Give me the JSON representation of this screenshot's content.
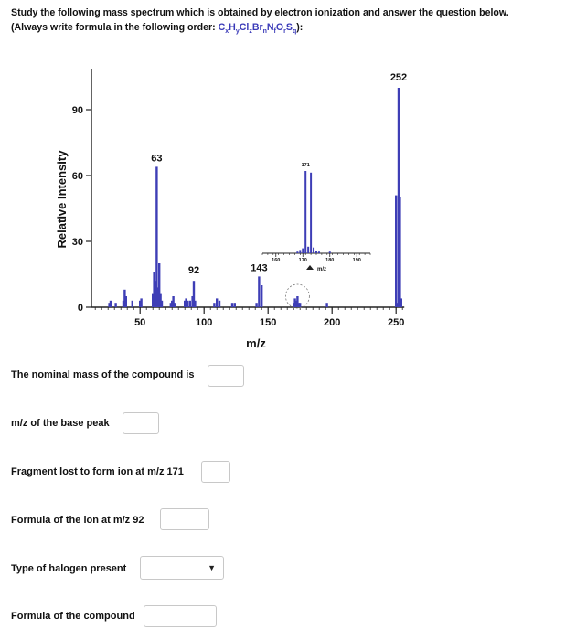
{
  "instructions": {
    "line1": "Study the following mass spectrum which is obtained by electron ionization and answer the question below.",
    "line2_prefix": "(Always write formula in the following order: ",
    "formula_order": "CxHyClzBrnNfOrSq",
    "line2_suffix": "):"
  },
  "chart_data": {
    "type": "bar",
    "ylabel": "Relative Intensity",
    "xlabel": "m/z",
    "xlim": [
      12,
      255
    ],
    "ylim": [
      0,
      100
    ],
    "x_ticks": [
      50,
      100,
      150,
      200,
      250
    ],
    "y_ticks": [
      0,
      30,
      60,
      90
    ],
    "peaks": [
      {
        "mz": 26,
        "intensity": 2
      },
      {
        "mz": 27,
        "intensity": 3
      },
      {
        "mz": 31,
        "intensity": 2
      },
      {
        "mz": 37,
        "intensity": 3
      },
      {
        "mz": 38,
        "intensity": 8
      },
      {
        "mz": 39,
        "intensity": 5
      },
      {
        "mz": 44,
        "intensity": 3
      },
      {
        "mz": 50,
        "intensity": 3
      },
      {
        "mz": 51,
        "intensity": 4
      },
      {
        "mz": 60,
        "intensity": 6
      },
      {
        "mz": 61,
        "intensity": 16
      },
      {
        "mz": 62,
        "intensity": 12
      },
      {
        "mz": 63,
        "intensity": 64
      },
      {
        "mz": 64,
        "intensity": 9
      },
      {
        "mz": 65,
        "intensity": 20
      },
      {
        "mz": 66,
        "intensity": 6
      },
      {
        "mz": 67,
        "intensity": 3
      },
      {
        "mz": 74,
        "intensity": 2
      },
      {
        "mz": 75,
        "intensity": 3
      },
      {
        "mz": 76,
        "intensity": 5
      },
      {
        "mz": 77,
        "intensity": 2
      },
      {
        "mz": 85,
        "intensity": 3
      },
      {
        "mz": 86,
        "intensity": 4
      },
      {
        "mz": 87,
        "intensity": 3
      },
      {
        "mz": 89,
        "intensity": 3
      },
      {
        "mz": 91,
        "intensity": 5
      },
      {
        "mz": 92,
        "intensity": 12
      },
      {
        "mz": 93,
        "intensity": 3
      },
      {
        "mz": 108,
        "intensity": 2
      },
      {
        "mz": 110,
        "intensity": 4
      },
      {
        "mz": 112,
        "intensity": 3
      },
      {
        "mz": 122,
        "intensity": 2
      },
      {
        "mz": 124,
        "intensity": 2
      },
      {
        "mz": 141,
        "intensity": 2
      },
      {
        "mz": 143,
        "intensity": 14
      },
      {
        "mz": 145,
        "intensity": 10
      },
      {
        "mz": 170,
        "intensity": 2
      },
      {
        "mz": 171,
        "intensity": 4
      },
      {
        "mz": 172,
        "intensity": 3
      },
      {
        "mz": 173,
        "intensity": 5
      },
      {
        "mz": 174,
        "intensity": 2
      },
      {
        "mz": 175,
        "intensity": 2
      },
      {
        "mz": 196,
        "intensity": 2
      },
      {
        "mz": 250,
        "intensity": 51
      },
      {
        "mz": 251,
        "intensity": 2
      },
      {
        "mz": 252,
        "intensity": 100
      },
      {
        "mz": 253,
        "intensity": 50
      },
      {
        "mz": 254,
        "intensity": 4
      }
    ],
    "peak_labels": [
      {
        "mz": 63,
        "text": "63"
      },
      {
        "mz": 92,
        "text": "92"
      },
      {
        "mz": 143,
        "text": "143"
      },
      {
        "mz": 252,
        "text": "252"
      }
    ],
    "inset": {
      "xlabel": "m/z",
      "xlim": [
        155,
        195
      ],
      "x_ticks": [
        160,
        170,
        180,
        190
      ],
      "peak_label": "171",
      "peaks": [
        {
          "mz": 168,
          "intensity": 2
        },
        {
          "mz": 169,
          "intensity": 4
        },
        {
          "mz": 170,
          "intensity": 6
        },
        {
          "mz": 171,
          "intensity": 100
        },
        {
          "mz": 172,
          "intensity": 8
        },
        {
          "mz": 173,
          "intensity": 98
        },
        {
          "mz": 174,
          "intensity": 7
        },
        {
          "mz": 175,
          "intensity": 3
        },
        {
          "mz": 176,
          "intensity": 2
        },
        {
          "mz": 180,
          "intensity": 2
        }
      ]
    }
  },
  "questions": [
    {
      "label": "The nominal mass of the compound is"
    },
    {
      "label": "m/z of the base peak"
    },
    {
      "label": "Fragment lost to form ion  at m/z 171"
    },
    {
      "label": "Formula of the ion  at m/z 92"
    },
    {
      "label": "Type of halogen present"
    },
    {
      "label": "Formula of the compound"
    }
  ],
  "colors": {
    "bar": "#3e3eb6",
    "axis": "#222222",
    "formula_accent": "#3a3ab8"
  }
}
